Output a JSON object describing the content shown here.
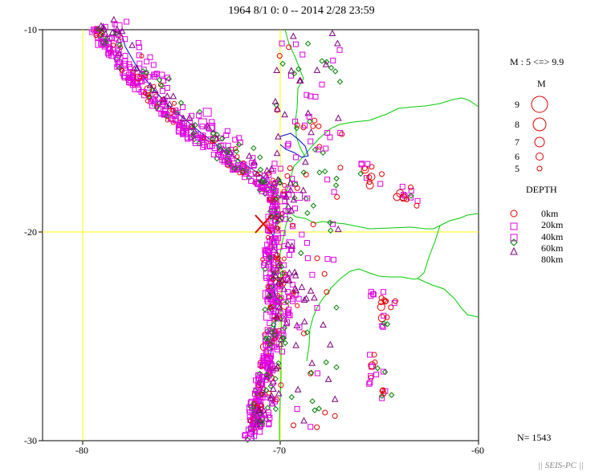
{
  "title": "1964 8/1 0: 0 -- 2014 2/28 23:59",
  "axes": {
    "y_ticks": [
      "-10",
      "-20",
      "-30"
    ],
    "x_ticks": [
      "-80",
      "-70",
      "-60"
    ]
  },
  "legend": {
    "mag_range": "M : 5 <=> 9.9",
    "mag_title": "M",
    "mags": [
      "9",
      "8",
      "7",
      "6",
      "5"
    ],
    "depth_title": "DEPTH",
    "depths": [
      "0km",
      "20km",
      "40km",
      "60km",
      "80km"
    ]
  },
  "count": "N= 1543",
  "footer": "|| SEIS-PC ||",
  "colors": {
    "magnitude_circle": "#e00000",
    "depth_0": "#e00000",
    "depth_20": "#e000e0",
    "depth_40": "#e000e0",
    "depth_60": "#008000",
    "depth_80": "#800080",
    "boundaries": "#00cc00",
    "coastline": "#0000cc",
    "gridline": "#ffff00",
    "mainshock": "#e00000"
  },
  "map": {
    "lon_range": [
      -82,
      -60
    ],
    "lat_range": [
      -30,
      -10
    ],
    "mainshock": {
      "lon": -70.8,
      "lat": -19.6,
      "symbol": "red-x"
    }
  }
}
